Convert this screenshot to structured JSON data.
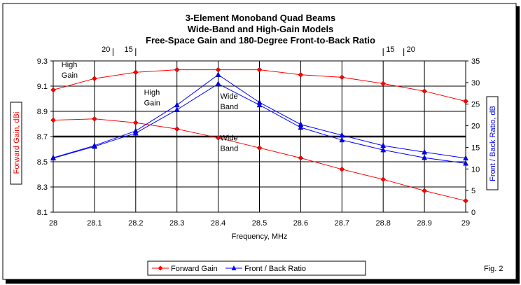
{
  "chart_data": {
    "type": "line",
    "title": [
      "3-Element Monoband Quad Beams",
      "Wide-Band and High-Gain Models",
      "Free-Space Gain and 180-Degree Front-to-Back Ratio"
    ],
    "xlabel": "Frequency, MHz",
    "ylabel_left": "Forward Gain,  dBi",
    "ylabel_right": "Front / Back Ratio,  dB",
    "x": [
      28,
      28.1,
      28.2,
      28.3,
      28.4,
      28.5,
      28.6,
      28.7,
      28.8,
      28.9,
      29
    ],
    "x_tick_labels": [
      "28",
      "28.1",
      "28.2",
      "28.3",
      "28.4",
      "28.5",
      "28.6",
      "28.7",
      "28.8",
      "28.9",
      "29"
    ],
    "xlim": [
      28,
      29
    ],
    "ylim_left": [
      8.1,
      9.3
    ],
    "y_left_ticks": [
      "8.1",
      "8.3",
      "8.5",
      "8.7",
      "8.9",
      "9.1",
      "9.3"
    ],
    "ylim_right": [
      0,
      35
    ],
    "y_right_ticks": [
      "0",
      "5",
      "10",
      "15",
      "20",
      "25",
      "30",
      "35"
    ],
    "reference_line_left": 8.7,
    "grid": true,
    "series": [
      {
        "name": "Forward Gain",
        "model": "High Gain",
        "axis": "left",
        "color": "#ff0000",
        "marker": "diamond",
        "values": [
          9.07,
          9.16,
          9.21,
          9.23,
          9.23,
          9.23,
          9.19,
          9.17,
          9.12,
          9.06,
          8.98
        ]
      },
      {
        "name": "Forward Gain",
        "model": "Wide Band",
        "axis": "left",
        "color": "#ff0000",
        "marker": "diamond",
        "values": [
          8.83,
          8.84,
          8.81,
          8.76,
          8.69,
          8.61,
          8.53,
          8.44,
          8.36,
          8.27,
          8.19
        ]
      },
      {
        "name": "Front / Back Ratio",
        "model": "High Gain",
        "axis": "right",
        "color": "#0000ff",
        "marker": "triangle",
        "values": [
          12.6,
          15.4,
          18.8,
          24.8,
          31.8,
          25.4,
          20.3,
          17.8,
          15.4,
          13.9,
          12.5
        ]
      },
      {
        "name": "Front / Back Ratio",
        "model": "Wide Band",
        "axis": "right",
        "color": "#0000ff",
        "marker": "triangle",
        "values": [
          12.5,
          15.2,
          18.3,
          23.7,
          29.7,
          24.8,
          19.6,
          16.7,
          14.4,
          12.6,
          11.3
        ]
      }
    ],
    "annotations": [
      {
        "text": [
          "High",
          "Gain"
        ],
        "x": 28.02,
        "y_left": 9.25
      },
      {
        "text": [
          "High",
          "Gain"
        ],
        "x": 28.22,
        "y_left": 9.03
      },
      {
        "text": [
          "Wide",
          "Band"
        ],
        "x": 28.405,
        "y_left": 9.0
      },
      {
        "text": [
          "Wide",
          "Band"
        ],
        "x": 28.405,
        "y_left": 8.67
      }
    ],
    "swr_markers": [
      {
        "label": "20",
        "x": 28.145
      },
      {
        "label": "15",
        "x": 28.2
      },
      {
        "label": "15",
        "x": 28.8
      },
      {
        "label": "20",
        "x": 28.85
      }
    ],
    "legend": {
      "placement": "bottom",
      "entries": [
        "Forward Gain",
        "Front / Back Ratio"
      ]
    },
    "figure_label": "Fig. 2"
  }
}
